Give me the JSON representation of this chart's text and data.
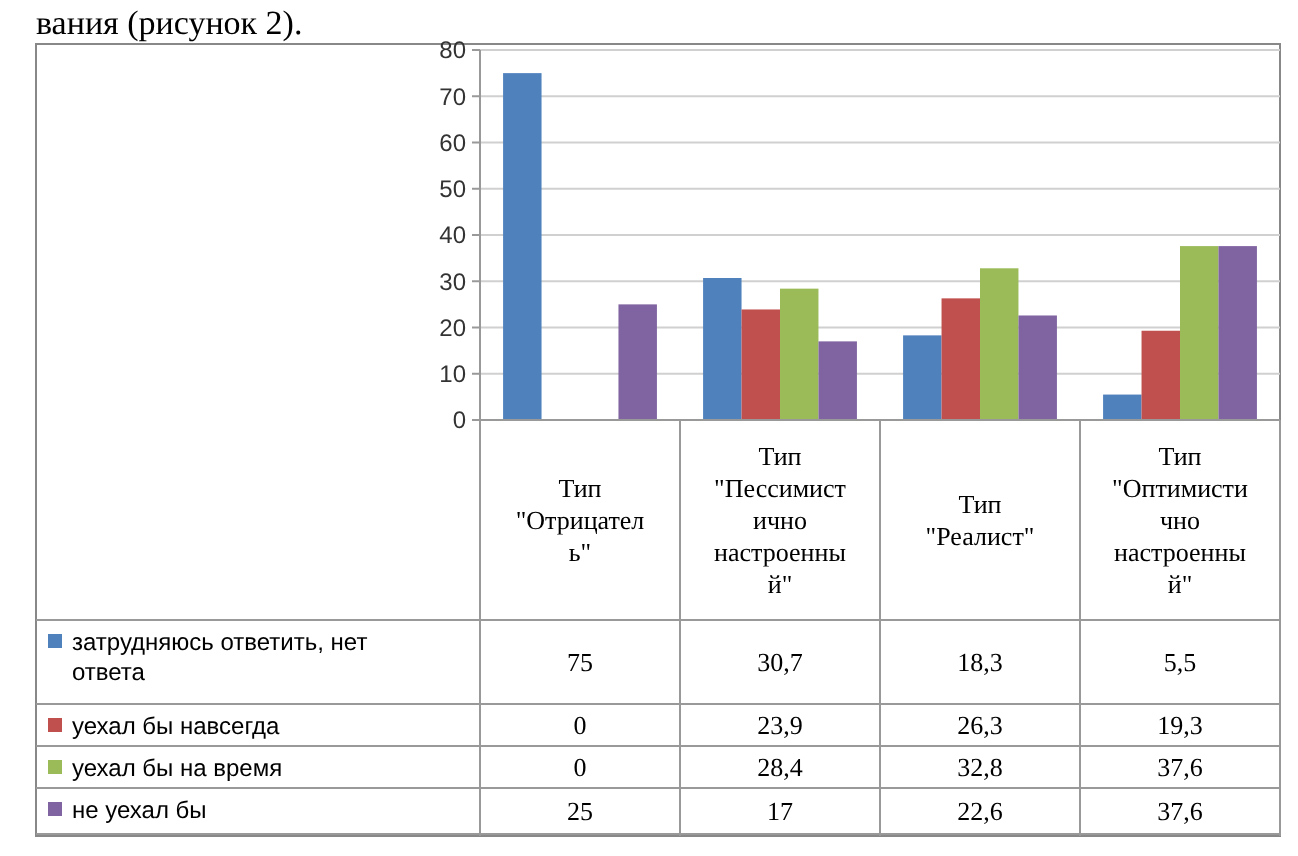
{
  "chart_data": {
    "type": "bar",
    "annotations": [
      "вания (рисунок 2)."
    ],
    "categories": [
      "Тип \"Отрицатель\"",
      "Тип \"Пессимистично настроенный\"",
      "Тип \"Реалист\"",
      "Тип \"Оптимистично настроенный\""
    ],
    "series": [
      {
        "name": "затрудняюсь ответить, нет ответа",
        "color": "#4f81bd",
        "values": [
          75,
          30.7,
          18.3,
          5.5
        ],
        "value_labels": [
          "75",
          "30,7",
          "18,3",
          "5,5"
        ]
      },
      {
        "name": "уехал бы навсегда",
        "color": "#c0504d",
        "values": [
          0,
          23.9,
          26.3,
          19.3
        ],
        "value_labels": [
          "0",
          "23,9",
          "26,3",
          "19,3"
        ]
      },
      {
        "name": "уехал бы на время",
        "color": "#9bbb59",
        "values": [
          0,
          28.4,
          32.8,
          37.6
        ],
        "value_labels": [
          "0",
          "28,4",
          "32,8",
          "37,6"
        ]
      },
      {
        "name": "не уехал бы",
        "color": "#8064a2",
        "values": [
          25,
          17,
          22.6,
          37.6
        ],
        "value_labels": [
          "25",
          "17",
          "22,6",
          "37,6"
        ]
      }
    ],
    "ylim": [
      0,
      80
    ],
    "yticks": [
      0,
      10,
      20,
      30,
      40,
      50,
      60,
      70,
      80
    ],
    "grid": "y",
    "legend": "bottom"
  }
}
